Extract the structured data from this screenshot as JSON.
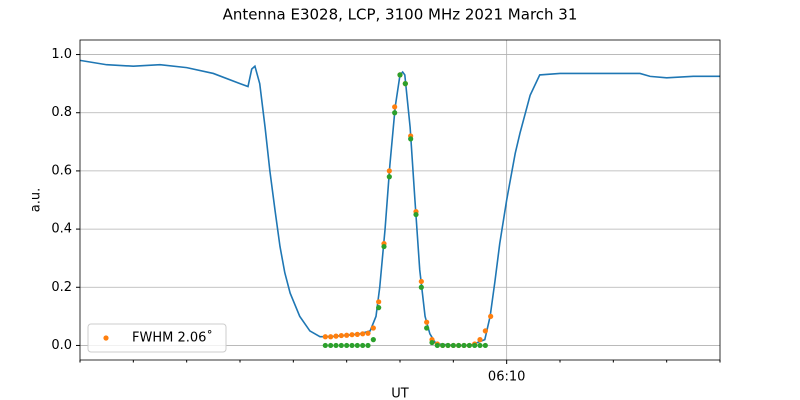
{
  "chart_data": {
    "type": "line",
    "title": "Antenna E3028, LCP, 3100 MHz 2021 March 31",
    "xlabel": "UT",
    "ylabel": "a.u.",
    "xlim": [
      2,
      14
    ],
    "ylim": [
      -0.05,
      1.05
    ],
    "xticks": [
      {
        "value": 10,
        "label": "06:10"
      }
    ],
    "xminorticks": [
      2,
      3,
      4,
      5,
      6,
      7,
      8,
      9,
      11,
      12,
      13,
      14
    ],
    "yticks": [
      {
        "value": 0,
        "label": "0.0"
      },
      {
        "value": 0.2,
        "label": "0.2"
      },
      {
        "value": 0.4,
        "label": "0.4"
      },
      {
        "value": 0.6,
        "label": "0.6"
      },
      {
        "value": 0.8,
        "label": "0.8"
      },
      {
        "value": 1,
        "label": "1.0"
      }
    ],
    "grid": true,
    "legend": "lower left",
    "series": [
      {
        "mode": "line",
        "color": "#1f77b4",
        "x": [
          2.0,
          2.5,
          3.0,
          3.5,
          4.0,
          4.5,
          5.0,
          5.15,
          5.22,
          5.28,
          5.37,
          5.47,
          5.56,
          5.66,
          5.75,
          5.84,
          5.94,
          6.12,
          6.31,
          6.5,
          6.69,
          7.0,
          7.25,
          7.44,
          7.55,
          7.62,
          7.72,
          7.81,
          7.91,
          8.0,
          8.05,
          8.09,
          8.19,
          8.28,
          8.37,
          8.47,
          8.56,
          8.66,
          8.75,
          9.0,
          9.31,
          9.59,
          9.69,
          9.78,
          9.87,
          10.0,
          10.16,
          10.25,
          10.44,
          10.62,
          11.0,
          11.5,
          12.0,
          12.5,
          12.69,
          13.0,
          13.5,
          14.0
        ],
        "values": [
          0.98,
          0.965,
          0.96,
          0.965,
          0.955,
          0.935,
          0.9,
          0.89,
          0.95,
          0.96,
          0.9,
          0.75,
          0.6,
          0.46,
          0.34,
          0.25,
          0.18,
          0.1,
          0.05,
          0.03,
          0.03,
          0.035,
          0.04,
          0.05,
          0.1,
          0.2,
          0.4,
          0.62,
          0.82,
          0.93,
          0.94,
          0.93,
          0.75,
          0.5,
          0.26,
          0.1,
          0.04,
          0.01,
          0.005,
          0.0,
          0.0,
          0.02,
          0.1,
          0.22,
          0.35,
          0.5,
          0.66,
          0.73,
          0.86,
          0.93,
          0.935,
          0.935,
          0.935,
          0.935,
          0.925,
          0.92,
          0.925,
          0.925
        ]
      },
      {
        "mode": "scatter",
        "color": "#ff7f0e",
        "name": "FWHM 2.06˚",
        "x": [
          6.6,
          6.7,
          6.8,
          6.9,
          7.0,
          7.1,
          7.2,
          7.3,
          7.4,
          7.5,
          7.6,
          7.7,
          7.8,
          7.9,
          8.0,
          8.1,
          8.2,
          8.3,
          8.4,
          8.5,
          8.6,
          8.7,
          8.8,
          8.9,
          9.0,
          9.1,
          9.2,
          9.3,
          9.4,
          9.5,
          9.6,
          9.7
        ],
        "values": [
          0.03,
          0.03,
          0.032,
          0.034,
          0.035,
          0.037,
          0.038,
          0.04,
          0.042,
          0.06,
          0.15,
          0.35,
          0.6,
          0.82,
          0.93,
          0.9,
          0.72,
          0.46,
          0.22,
          0.08,
          0.02,
          0.005,
          0.0,
          0.0,
          0.0,
          0.0,
          0.0,
          0.0,
          0.005,
          0.02,
          0.05,
          0.1
        ]
      },
      {
        "mode": "scatter",
        "color": "#2ca02c",
        "x": [
          6.6,
          6.7,
          6.8,
          6.9,
          7.0,
          7.1,
          7.2,
          7.3,
          7.4,
          7.5,
          7.6,
          7.7,
          7.8,
          7.9,
          8.0,
          8.1,
          8.2,
          8.3,
          8.4,
          8.5,
          8.6,
          8.7,
          8.8,
          8.9,
          9.0,
          9.1,
          9.2,
          9.3,
          9.4,
          9.5,
          9.6
        ],
        "values": [
          0,
          0,
          0,
          0,
          0,
          0,
          0,
          0,
          0,
          0.02,
          0.13,
          0.34,
          0.58,
          0.8,
          0.93,
          0.9,
          0.71,
          0.45,
          0.2,
          0.06,
          0.01,
          0,
          0,
          0,
          0,
          0,
          0,
          0,
          0,
          0,
          0
        ]
      }
    ]
  }
}
